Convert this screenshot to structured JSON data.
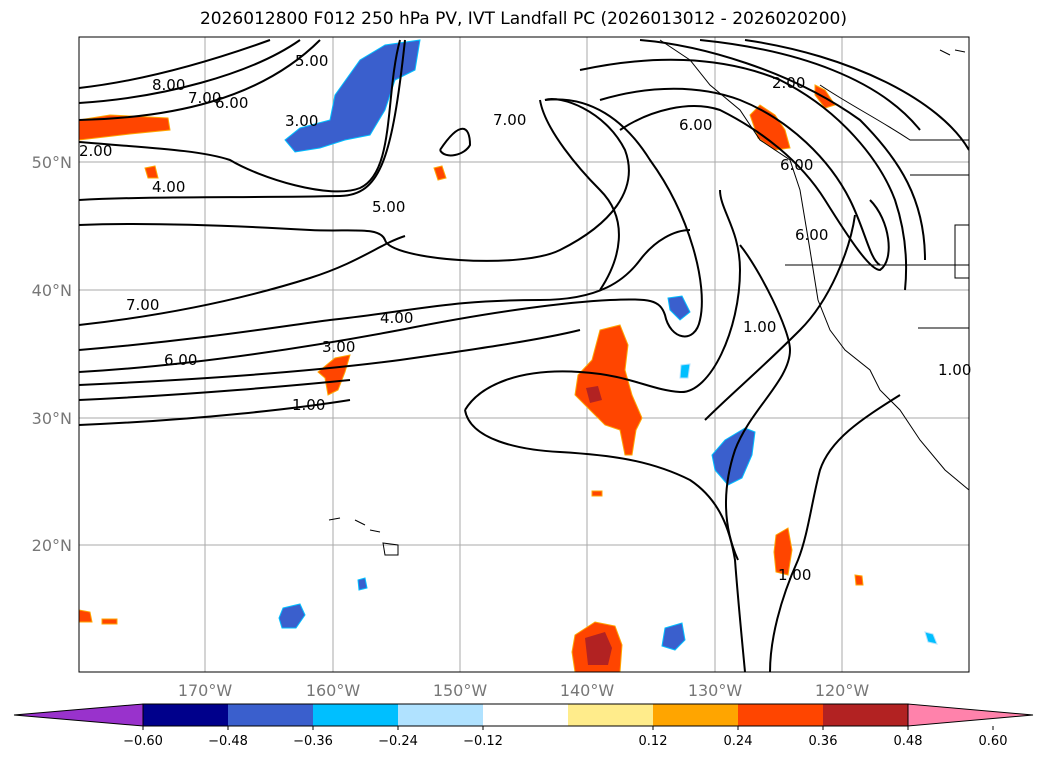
{
  "title": "2026012800 F012 250 hPa PV, IVT Landfall PC (2026013012 - 2026020200)",
  "latitude_labels": [
    "50°N",
    "40°N",
    "30°N",
    "20°N"
  ],
  "longitude_labels": [
    "170°W",
    "160°W",
    "150°W",
    "140°W",
    "130°W",
    "120°W"
  ],
  "contour_labels": [
    "8.00",
    "7.00",
    "6.00",
    "5.00",
    "3.00",
    "2.00",
    "4.00",
    "5.00",
    "7.00",
    "6.00",
    "3.00",
    "4.00",
    "1.00",
    "7.00",
    "6.00",
    "1.00",
    "1.00",
    "1.00",
    "2.00",
    "6.00",
    "6.00"
  ],
  "colorbar": {
    "ticks": [
      "−0.60",
      "−0.48",
      "−0.36",
      "−0.24",
      "−0.12",
      "0.12",
      "0.24",
      "0.36",
      "0.48",
      "0.60"
    ],
    "colors": [
      "#9932cc",
      "#00008b",
      "#3a5fcd",
      "#00bfff",
      "#b0e2ff",
      "#ffffff",
      "#ffec8b",
      "#ffa500",
      "#ff4500",
      "#b22222",
      "#ff82ab"
    ]
  }
}
